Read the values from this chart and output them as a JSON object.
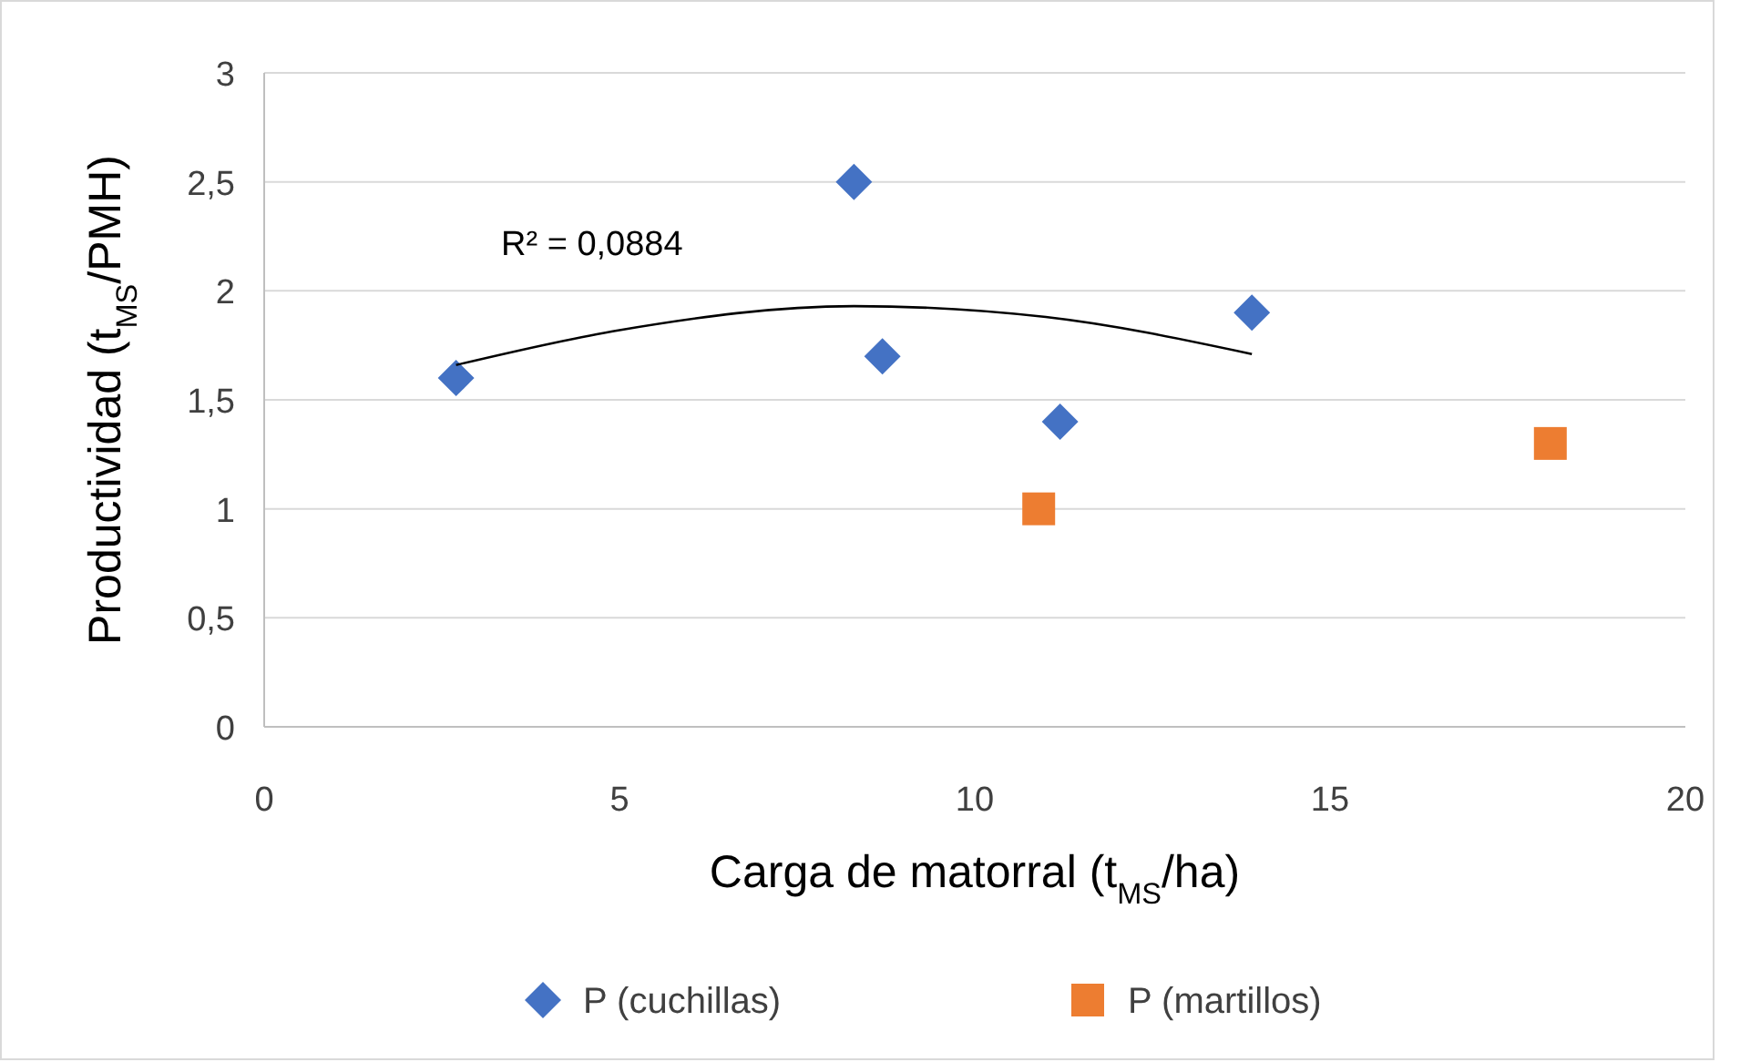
{
  "chart_data": {
    "type": "scatter",
    "xlabel": "Carga de matorral (t$_{MS}$/ha)",
    "ylabel": "Productividad (t$_{MS}$/PMH)",
    "xlim": [
      0,
      20
    ],
    "xticks": [
      0,
      5,
      10,
      15,
      20
    ],
    "ylim": [
      0,
      3
    ],
    "yticks": [
      0,
      {
        "value": 0.5,
        "label": "0,5"
      },
      1,
      {
        "value": 1.5,
        "label": "1,5"
      },
      2,
      {
        "value": 2.5,
        "label": "2,5"
      },
      3
    ],
    "grid": "y",
    "legend": "bottom",
    "annotations": [
      "R² = 0,0884"
    ],
    "series": [
      {
        "name": "P (cuchillas)",
        "color": "#4472c4",
        "marker": "diamond",
        "x": [
          2.7,
          8.3,
          8.7,
          11.2,
          13.9
        ],
        "values": [
          1.6,
          2.5,
          1.7,
          1.4,
          1.9
        ]
      },
      {
        "name": "P (martillos)",
        "color": "#ed7d31",
        "marker": "square",
        "x": [
          10.9,
          18.1
        ],
        "values": [
          1.0,
          1.3
        ]
      },
      {
        "type": "line",
        "color": "#000000",
        "marker": "none",
        "line_style": "solid",
        "x": [
          2.7,
          5,
          8.3,
          11,
          13.9
        ],
        "values": [
          1.66,
          1.82,
          1.93,
          1.88,
          1.71
        ]
      }
    ]
  }
}
